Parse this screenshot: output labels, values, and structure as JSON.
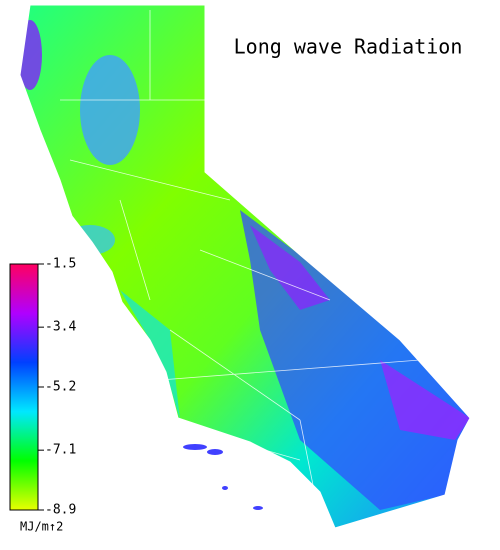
{
  "title": "Long wave Radiation",
  "colorbar": {
    "range": [
      -8.9,
      -1.5
    ],
    "ticks": [
      -1.5,
      -3.4,
      -5.2,
      -7.1,
      -8.9
    ],
    "colors": [
      "#e8ff00",
      "#00ff00",
      "#00e8ff",
      "#0040ff",
      "#b000ff",
      "#ff0060"
    ],
    "unit": "MJ/m↑2"
  }
}
